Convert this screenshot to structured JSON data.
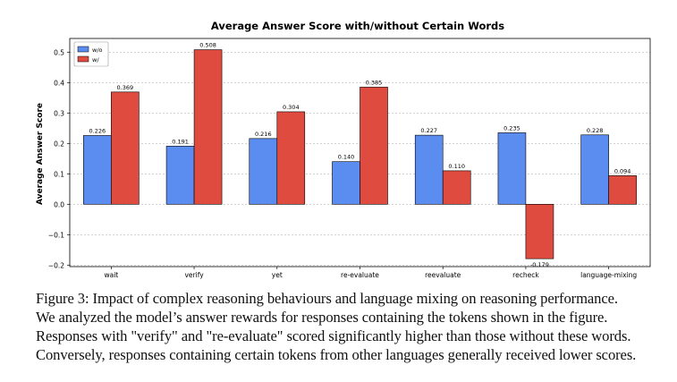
{
  "chart_data": {
    "type": "bar",
    "title": "Average Answer Score with/without Certain Words",
    "xlabel": "",
    "ylabel": "Average Answer Score",
    "categories": [
      "wait",
      "verify",
      "yet",
      "re-evaluate",
      "reevaluate",
      "recheck",
      "language-mixing"
    ],
    "series": [
      {
        "name": "w/o",
        "color": "#5b8cf0",
        "values": [
          0.226,
          0.191,
          0.216,
          0.14,
          0.227,
          0.235,
          0.228
        ],
        "labels": [
          "0.226",
          "0.191",
          "0.216",
          "0.140",
          "0.227",
          "0.235",
          "0.228"
        ]
      },
      {
        "name": "w/",
        "color": "#e04b3f",
        "values": [
          0.369,
          0.508,
          0.304,
          0.385,
          0.11,
          -0.179,
          0.094
        ],
        "labels": [
          "0.369",
          "0.508",
          "0.304",
          "0.385",
          "0.110",
          "-0.179",
          "0.094"
        ]
      }
    ],
    "ylim": [
      -0.205,
      0.545
    ],
    "yticks": [
      -0.2,
      -0.1,
      0.0,
      0.1,
      0.2,
      0.3,
      0.4,
      0.5
    ],
    "ytick_labels": [
      "−0.2",
      "−0.1",
      "0.0",
      "0.1",
      "0.2",
      "0.3",
      "0.4",
      "0.5"
    ],
    "grid": true,
    "legend": "top-left"
  },
  "caption": {
    "lines": [
      "Figure 3: Impact of complex reasoning behaviours and language mixing on reasoning performance.",
      "We analyzed the model’s answer rewards for responses containing the tokens shown in the figure.",
      "Responses with \"verify\" and \"re-evaluate\" scored significantly higher than those without these words.",
      "Conversely, responses containing certain tokens from other languages generally received lower scores."
    ]
  }
}
